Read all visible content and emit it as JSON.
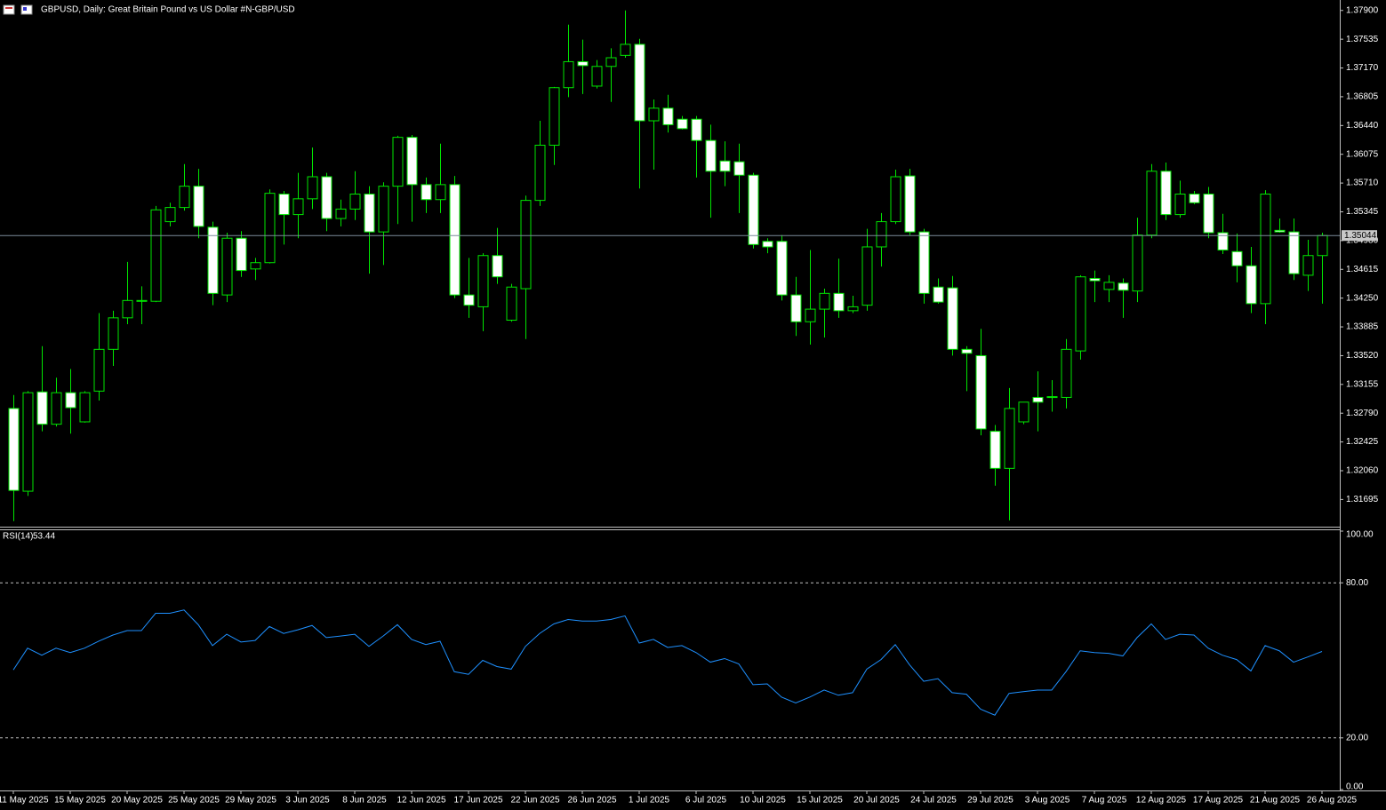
{
  "chart_data": [
    {
      "type": "candlestick",
      "title": "GBPUSD, Daily:  Great Britain Pound vs US Dollar #N-GBP/USD",
      "categories": [
        "11 May 2025",
        null,
        null,
        null,
        "15 May 2025",
        null,
        null,
        null,
        "20 May 2025",
        null,
        null,
        null,
        "25 May 2025",
        null,
        null,
        null,
        "29 May 2025",
        null,
        null,
        null,
        "3 Jun 2025",
        null,
        null,
        null,
        "8 Jun 2025",
        null,
        null,
        null,
        "12 Jun 2025",
        null,
        null,
        null,
        "17 Jun 2025",
        null,
        null,
        null,
        "22 Jun 2025",
        null,
        null,
        null,
        "26 Jun 2025",
        null,
        null,
        null,
        "1 Jul 2025",
        null,
        null,
        null,
        "6 Jul 2025",
        null,
        null,
        null,
        "10 Jul 2025",
        null,
        null,
        null,
        "15 Jul 2025",
        null,
        null,
        null,
        "20 Jul 2025",
        null,
        null,
        null,
        "24 Jul 2025",
        null,
        null,
        null,
        "29 Jul 2025",
        null,
        null,
        null,
        "3 Aug 2025",
        null,
        null,
        null,
        "7 Aug 2025",
        null,
        null,
        null,
        "12 Aug 2025",
        null,
        null,
        null,
        "17 Aug 2025",
        null,
        null,
        null,
        "21 Aug 2025",
        null,
        null,
        null,
        "26 Aug 2025"
      ],
      "open": [
        1.3285,
        1.318,
        1.3306,
        1.3265,
        1.3305,
        1.3268,
        1.3307,
        1.336,
        1.34,
        1.3421,
        1.3421,
        1.3522,
        1.354,
        1.3567,
        1.3515,
        1.3429,
        1.3501,
        1.3462,
        1.347,
        1.3557,
        1.3531,
        1.3551,
        1.3579,
        1.3526,
        1.3538,
        1.3557,
        1.3509,
        1.3567,
        1.3629,
        1.3569,
        1.355,
        1.3569,
        1.3429,
        1.3414,
        1.3479,
        1.3397,
        1.3437,
        1.3549,
        1.3619,
        1.3692,
        1.3725,
        1.3694,
        1.3719,
        1.3733,
        1.3747,
        1.365,
        1.3666,
        1.3652,
        1.3652,
        1.3625,
        1.3599,
        1.3598,
        1.3581,
        1.3497,
        1.3497,
        1.3429,
        1.3395,
        1.3411,
        1.3431,
        1.3409,
        1.3416,
        1.349,
        1.3522,
        1.358,
        1.3509,
        1.3439,
        1.3438,
        1.336,
        1.3352,
        1.3256,
        1.3209,
        1.3268,
        1.3299,
        1.3299,
        1.3299,
        1.3358,
        1.345,
        1.3436,
        1.3444,
        1.3434,
        1.3505,
        1.3586,
        1.3531,
        1.3557,
        1.3557,
        1.3508,
        1.3484,
        1.3466,
        1.3418,
        1.3511,
        1.3509,
        1.3454,
        1.3479
      ],
      "high": [
        1.3302,
        1.3307,
        1.3364,
        1.3324,
        1.3335,
        1.3307,
        1.3406,
        1.3409,
        1.3471,
        1.344,
        1.3542,
        1.3546,
        1.3595,
        1.3589,
        1.3522,
        1.3508,
        1.351,
        1.3476,
        1.3563,
        1.3561,
        1.3584,
        1.3616,
        1.3584,
        1.355,
        1.3586,
        1.3567,
        1.3572,
        1.3631,
        1.3632,
        1.3578,
        1.3621,
        1.358,
        1.3476,
        1.3482,
        1.3514,
        1.3443,
        1.3555,
        1.365,
        1.3693,
        1.3772,
        1.3753,
        1.3727,
        1.3742,
        1.379,
        1.3754,
        1.3677,
        1.3683,
        1.3656,
        1.3656,
        1.3645,
        1.3624,
        1.3621,
        1.3584,
        1.3501,
        1.3505,
        1.3452,
        1.3486,
        1.3437,
        1.3475,
        1.3428,
        1.3513,
        1.3533,
        1.3588,
        1.3589,
        1.3513,
        1.345,
        1.3453,
        1.3364,
        1.3386,
        1.3264,
        1.3311,
        1.3293,
        1.3332,
        1.3321,
        1.3373,
        1.3454,
        1.346,
        1.3454,
        1.345,
        1.3527,
        1.3595,
        1.3597,
        1.3574,
        1.3561,
        1.3566,
        1.3532,
        1.3507,
        1.349,
        1.3562,
        1.3526,
        1.3526,
        1.3499,
        1.3508
      ],
      "low": [
        1.3142,
        1.3174,
        1.3256,
        1.3262,
        1.3253,
        1.3267,
        1.3295,
        1.3339,
        1.3392,
        1.3392,
        1.342,
        1.3516,
        1.3536,
        1.3501,
        1.3416,
        1.342,
        1.3452,
        1.3448,
        1.3469,
        1.3493,
        1.3501,
        1.3538,
        1.351,
        1.3516,
        1.3524,
        1.3456,
        1.3467,
        1.3519,
        1.3522,
        1.3533,
        1.3533,
        1.3425,
        1.34,
        1.3383,
        1.3443,
        1.3395,
        1.3373,
        1.3542,
        1.3594,
        1.368,
        1.3684,
        1.3691,
        1.3674,
        1.373,
        1.3564,
        1.3588,
        1.3635,
        1.3639,
        1.3578,
        1.3527,
        1.3567,
        1.3533,
        1.3488,
        1.3482,
        1.3422,
        1.3377,
        1.3366,
        1.3375,
        1.34,
        1.3406,
        1.3409,
        1.3465,
        1.3519,
        1.3505,
        1.3418,
        1.3418,
        1.3352,
        1.3307,
        1.3251,
        1.3187,
        1.3143,
        1.3265,
        1.3256,
        1.3281,
        1.3285,
        1.3347,
        1.342,
        1.342,
        1.34,
        1.342,
        1.3501,
        1.3524,
        1.3527,
        1.3544,
        1.3501,
        1.3481,
        1.3445,
        1.3406,
        1.3392,
        1.3508,
        1.3448,
        1.3434,
        1.3418
      ],
      "close": [
        1.3181,
        1.3305,
        1.3265,
        1.3305,
        1.3286,
        1.3305,
        1.336,
        1.34,
        1.3422,
        1.3422,
        1.3537,
        1.354,
        1.3567,
        1.3516,
        1.3431,
        1.3501,
        1.346,
        1.347,
        1.3558,
        1.3531,
        1.3551,
        1.3579,
        1.3526,
        1.3538,
        1.3557,
        1.3509,
        1.3567,
        1.3629,
        1.3569,
        1.355,
        1.3569,
        1.3429,
        1.3416,
        1.3479,
        1.3452,
        1.3439,
        1.3549,
        1.3619,
        1.3692,
        1.3725,
        1.372,
        1.3719,
        1.373,
        1.3747,
        1.365,
        1.3666,
        1.3645,
        1.364,
        1.3625,
        1.3586,
        1.3586,
        1.3581,
        1.3493,
        1.349,
        1.3429,
        1.3395,
        1.3411,
        1.3431,
        1.3409,
        1.3414,
        1.349,
        1.3522,
        1.3579,
        1.3509,
        1.3431,
        1.342,
        1.336,
        1.3355,
        1.3259,
        1.3209,
        1.3285,
        1.3293,
        1.3293,
        1.33,
        1.336,
        1.3452,
        1.3447,
        1.3445,
        1.3435,
        1.3505,
        1.3586,
        1.3531,
        1.3557,
        1.3546,
        1.3508,
        1.3486,
        1.3466,
        1.3418,
        1.3557,
        1.3509,
        1.3456,
        1.3479,
        1.35044
      ],
      "last_price": 1.35044,
      "ylim": [
        1.3135,
        1.3801
      ],
      "yticks": [
        {
          "value": 1.379,
          "label": "1.37900"
        },
        {
          "value": 1.37535,
          "label": "1.37535"
        },
        {
          "value": 1.3717,
          "label": "1.37170"
        },
        {
          "value": 1.36805,
          "label": "1.36805"
        },
        {
          "value": 1.3644,
          "label": "1.36440"
        },
        {
          "value": 1.36075,
          "label": "1.36075"
        },
        {
          "value": 1.3571,
          "label": "1.35710"
        },
        {
          "value": 1.35345,
          "label": "1.35345"
        },
        {
          "value": 1.3498,
          "label": "1.34980"
        },
        {
          "value": 1.34615,
          "label": "1.34615"
        },
        {
          "value": 1.3425,
          "label": "1.34250"
        },
        {
          "value": 1.33885,
          "label": "1.33885"
        },
        {
          "value": 1.3352,
          "label": "1.33520"
        },
        {
          "value": 1.33155,
          "label": "1.33155"
        },
        {
          "value": 1.3279,
          "label": "1.32790"
        },
        {
          "value": 1.32425,
          "label": "1.32425"
        },
        {
          "value": 1.3206,
          "label": "1.32060"
        },
        {
          "value": 1.31695,
          "label": "1.31695"
        }
      ],
      "colors": {
        "up": "#000000",
        "down": "#ffffff",
        "outline": "#00e600",
        "last_price": "#7a8a9a"
      }
    },
    {
      "type": "line",
      "title": "RSI(14)",
      "values": [
        46.3,
        54.7,
        52.0,
        54.7,
        53.0,
        54.7,
        57.4,
        59.8,
        61.5,
        61.5,
        68.2,
        68.2,
        69.5,
        63.8,
        55.7,
        60.1,
        57.1,
        57.7,
        63.1,
        60.4,
        61.8,
        63.5,
        58.8,
        59.4,
        60.1,
        55.4,
        59.4,
        63.8,
        58.1,
        56.1,
        57.4,
        45.6,
        44.6,
        50.0,
        47.6,
        46.6,
        55.4,
        60.4,
        64.1,
        65.8,
        65.2,
        65.2,
        65.8,
        67.2,
        56.7,
        58.1,
        55.0,
        55.7,
        53.0,
        49.3,
        50.7,
        48.6,
        40.6,
        40.9,
        35.8,
        33.5,
        35.8,
        38.5,
        36.5,
        37.5,
        46.6,
        50.3,
        56.1,
        48.3,
        41.9,
        42.9,
        37.5,
        36.9,
        31.1,
        28.8,
        37.2,
        37.9,
        38.5,
        38.5,
        45.6,
        53.7,
        53.0,
        52.7,
        51.7,
        58.8,
        64.1,
        58.1,
        60.1,
        59.8,
        54.7,
        52.0,
        50.3,
        45.9,
        55.7,
        53.7,
        49.3,
        51.3,
        53.44
      ],
      "color": "#1e90ff",
      "ylim": [
        0,
        100
      ],
      "yticks": [
        {
          "value": 100,
          "label": "100.00"
        },
        {
          "value": 80,
          "label": "80.00"
        },
        {
          "value": 20,
          "label": "20.00"
        },
        {
          "value": 0,
          "label": "0.00"
        }
      ]
    }
  ]
}
